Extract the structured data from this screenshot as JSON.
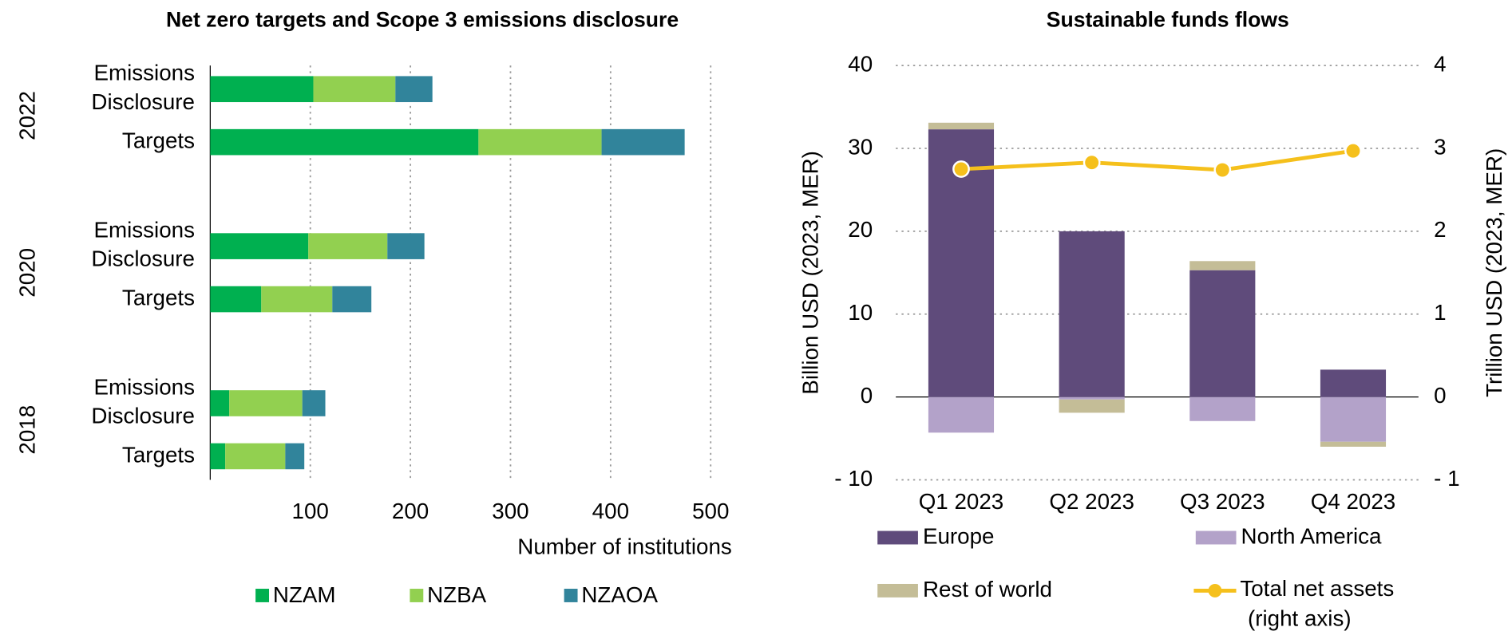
{
  "chart_data": [
    {
      "type": "hbar-stacked",
      "title": "Net zero targets and Scope 3 emissions disclosure",
      "groups": [
        "2022",
        "2020",
        "2018"
      ],
      "categories": [
        "Emissions Disclosure",
        "Targets",
        "Emissions Disclosure",
        "Targets",
        "Emissions Disclosure",
        "Targets"
      ],
      "series": [
        {
          "name": "NZAM",
          "color": "#00b050",
          "values": [
            103,
            268,
            98,
            51,
            19,
            15
          ]
        },
        {
          "name": "NZBA",
          "color": "#92d050",
          "values": [
            82,
            123,
            79,
            71,
            73,
            60
          ]
        },
        {
          "name": "NZAOA",
          "color": "#31849b",
          "values": [
            37,
            83,
            37,
            39,
            23,
            19
          ]
        }
      ],
      "x_label": "Number of institutions",
      "xlim": [
        0,
        500
      ],
      "xticks": [
        100,
        200,
        300,
        400,
        500
      ],
      "grid": true,
      "legend": "bottom"
    },
    {
      "type": "bar-line",
      "title": "Sustainable funds flows",
      "categories": [
        "Q1 2023",
        "Q2 2023",
        "Q3 2023",
        "Q4 2023"
      ],
      "series": [
        {
          "name": "Europe",
          "color": "#5f4b7b",
          "values": [
            32.3,
            20,
            15.3,
            3.3
          ]
        },
        {
          "name": "North America",
          "color": "#b3a2c9",
          "values": [
            -4.3,
            -0.3,
            -2.9,
            -5.4
          ]
        },
        {
          "name": "Rest of world",
          "color": "#c4bd97",
          "values": [
            0.8,
            -1.6,
            1.1,
            -0.6
          ]
        },
        {
          "name": "Total net assets (right axis)",
          "color": "#f5c01c",
          "axis": "y2",
          "type": "line",
          "values": [
            2.75,
            2.83,
            2.74,
            2.97
          ]
        }
      ],
      "y_label": "Billion USD (2023, MER)",
      "y2_label": "Trillion USD (2023, MER)",
      "ylim": [
        -10,
        40
      ],
      "yticks": [
        {
          "value": -10,
          "label": "- 10"
        },
        0,
        10,
        20,
        30,
        40
      ],
      "y2lim": [
        -1,
        4
      ],
      "y2ticks": [
        {
          "value": -1,
          "label": "- 1"
        },
        0,
        1,
        2,
        3,
        4
      ],
      "grid": true,
      "legend": "bottom"
    }
  ]
}
